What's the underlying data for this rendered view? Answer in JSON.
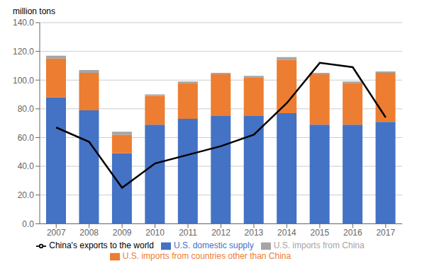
{
  "chart_data": {
    "type": "bar",
    "stacked": true,
    "grid": true,
    "legend": "bottom",
    "y_label": "million tons",
    "categories": [
      "2007",
      "2008",
      "2009",
      "2010",
      "2011",
      "2012",
      "2013",
      "2014",
      "2015",
      "2016",
      "2017"
    ],
    "series": [
      {
        "name": "U.S. domestic supply",
        "type": "bar",
        "color": "#4472C4",
        "values": [
          88,
          79,
          49,
          69,
          73,
          75,
          75,
          77,
          69,
          69,
          71
        ]
      },
      {
        "name": "U.S. imports from countries other than China",
        "type": "bar",
        "color": "#ED7D31",
        "values": [
          27,
          26,
          13,
          20,
          25,
          29,
          27,
          37,
          35,
          29,
          34
        ]
      },
      {
        "name": "U.S. imports from China",
        "type": "bar",
        "color": "#A5A5A5",
        "values": [
          2,
          2,
          2,
          1,
          1,
          1,
          1,
          2,
          1,
          1,
          1
        ]
      },
      {
        "name": "China's exports to the world",
        "type": "line",
        "color": "#000000",
        "values": [
          67,
          57,
          25,
          42,
          48,
          54,
          62,
          84,
          112,
          109,
          74
        ]
      }
    ],
    "ylim": [
      0,
      140
    ],
    "yticks": [
      {
        "value": 0,
        "label": "0.0"
      },
      {
        "value": 20,
        "label": "20.0"
      },
      {
        "value": 40,
        "label": "40.0"
      },
      {
        "value": 60,
        "label": "60.0"
      },
      {
        "value": 80,
        "label": "80.0"
      },
      {
        "value": 100,
        "label": "100.0"
      },
      {
        "value": 120,
        "label": "120.0"
      },
      {
        "value": 140,
        "label": "140.0"
      }
    ]
  }
}
